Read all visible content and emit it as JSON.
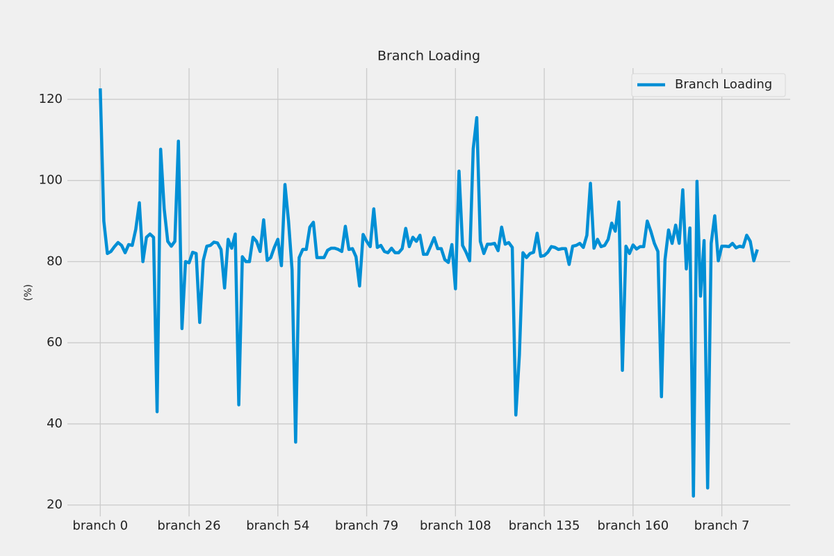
{
  "chart_data": {
    "type": "line",
    "title": "Branch Loading",
    "y_label": "(%)",
    "categories": [
      "branch 0",
      null,
      null,
      null,
      null,
      null,
      null,
      null,
      null,
      null,
      null,
      null,
      null,
      null,
      null,
      null,
      null,
      null,
      null,
      null,
      null,
      null,
      null,
      null,
      null,
      "branch 26",
      null,
      null,
      null,
      null,
      null,
      null,
      null,
      null,
      null,
      null,
      null,
      null,
      null,
      null,
      null,
      null,
      null,
      null,
      null,
      null,
      null,
      null,
      null,
      null,
      "branch 54",
      null,
      null,
      null,
      null,
      null,
      null,
      null,
      null,
      null,
      null,
      null,
      null,
      null,
      null,
      null,
      null,
      null,
      null,
      null,
      null,
      null,
      null,
      null,
      null,
      "branch 79",
      null,
      null,
      null,
      null,
      null,
      null,
      null,
      null,
      null,
      null,
      null,
      null,
      null,
      null,
      null,
      null,
      null,
      null,
      null,
      null,
      null,
      null,
      null,
      null,
      "branch 108",
      null,
      null,
      null,
      null,
      null,
      null,
      null,
      null,
      null,
      null,
      null,
      null,
      null,
      null,
      null,
      null,
      null,
      null,
      null,
      null,
      null,
      null,
      null,
      null,
      "branch 135",
      null,
      null,
      null,
      null,
      null,
      null,
      null,
      null,
      null,
      null,
      null,
      null,
      null,
      null,
      null,
      null,
      null,
      null,
      null,
      null,
      null,
      null,
      null,
      null,
      "branch 160",
      null,
      null,
      null,
      null,
      null,
      null,
      null,
      null,
      null,
      null,
      null,
      null,
      null,
      null,
      null,
      null,
      null,
      null,
      null,
      null,
      null,
      null,
      null,
      null,
      "branch 7",
      null,
      null,
      null,
      null,
      null,
      null,
      null,
      null,
      null,
      null
    ],
    "series": [
      {
        "name": "Branch Loading",
        "color": "#008fd5",
        "values": [
          122.7,
          90,
          82,
          82.5,
          83.7,
          84.7,
          84,
          82.2,
          84.2,
          84,
          88,
          94.5,
          80,
          86,
          86.8,
          86,
          43,
          107.7,
          93,
          85,
          83.8,
          85,
          109.7,
          63.5,
          80,
          79.7,
          82.3,
          82,
          65,
          80.3,
          83.8,
          84,
          84.8,
          84.6,
          83,
          73.5,
          85.5,
          83.3,
          86.8,
          44.7,
          81.2,
          80,
          80,
          86,
          85,
          82.5,
          90.3,
          80.3,
          81,
          83.5,
          85.5,
          79,
          99,
          90,
          78,
          35.5,
          81,
          83,
          83,
          88.5,
          89.7,
          81,
          81,
          81,
          82.8,
          83.3,
          83.3,
          83,
          82.5,
          88.7,
          83,
          83.2,
          81.2,
          74,
          86.7,
          85,
          83.7,
          93,
          83.5,
          84,
          82.5,
          82.2,
          83.3,
          82.2,
          82.2,
          83.2,
          88.2,
          83.7,
          86,
          85,
          86.5,
          81.8,
          81.8,
          83.8,
          85.9,
          83.2,
          83.2,
          80.5,
          79.8,
          84.2,
          73.3,
          102.3,
          84,
          82.3,
          80.2,
          107.8,
          115.5,
          85,
          82,
          84.3,
          84.3,
          84.5,
          82.7,
          88.5,
          84.3,
          84.7,
          83.5,
          42.2,
          57,
          82.2,
          81,
          82,
          82.3,
          87,
          81.3,
          81.5,
          82.3,
          83.7,
          83.5,
          83,
          83.2,
          83.2,
          79.3,
          83.8,
          84,
          84.5,
          83.5,
          86.5,
          99.3,
          83.3,
          85.5,
          83.7,
          84,
          85.5,
          89.5,
          87.5,
          94.7,
          53.2,
          83.8,
          82,
          84.1,
          83.1,
          83.7,
          83.7,
          90,
          87.5,
          84.5,
          82.5,
          46.7,
          80.5,
          87.8,
          84.5,
          89,
          84.5,
          97.7,
          78.2,
          88.3,
          22.2,
          99.8,
          71.5,
          85.2,
          24.2,
          84.5,
          91.3,
          80.2,
          83.8,
          83.8,
          83.7,
          84.5,
          83.4,
          83.8,
          83.6,
          86.5,
          85,
          80.2,
          83
        ]
      }
    ],
    "xlim": [
      -9.25,
      194.25
    ],
    "ylim": [
      17.2,
      127.7
    ],
    "yticks": [
      20,
      40,
      60,
      80,
      100,
      120
    ],
    "grid": true,
    "legend": "upper right"
  }
}
